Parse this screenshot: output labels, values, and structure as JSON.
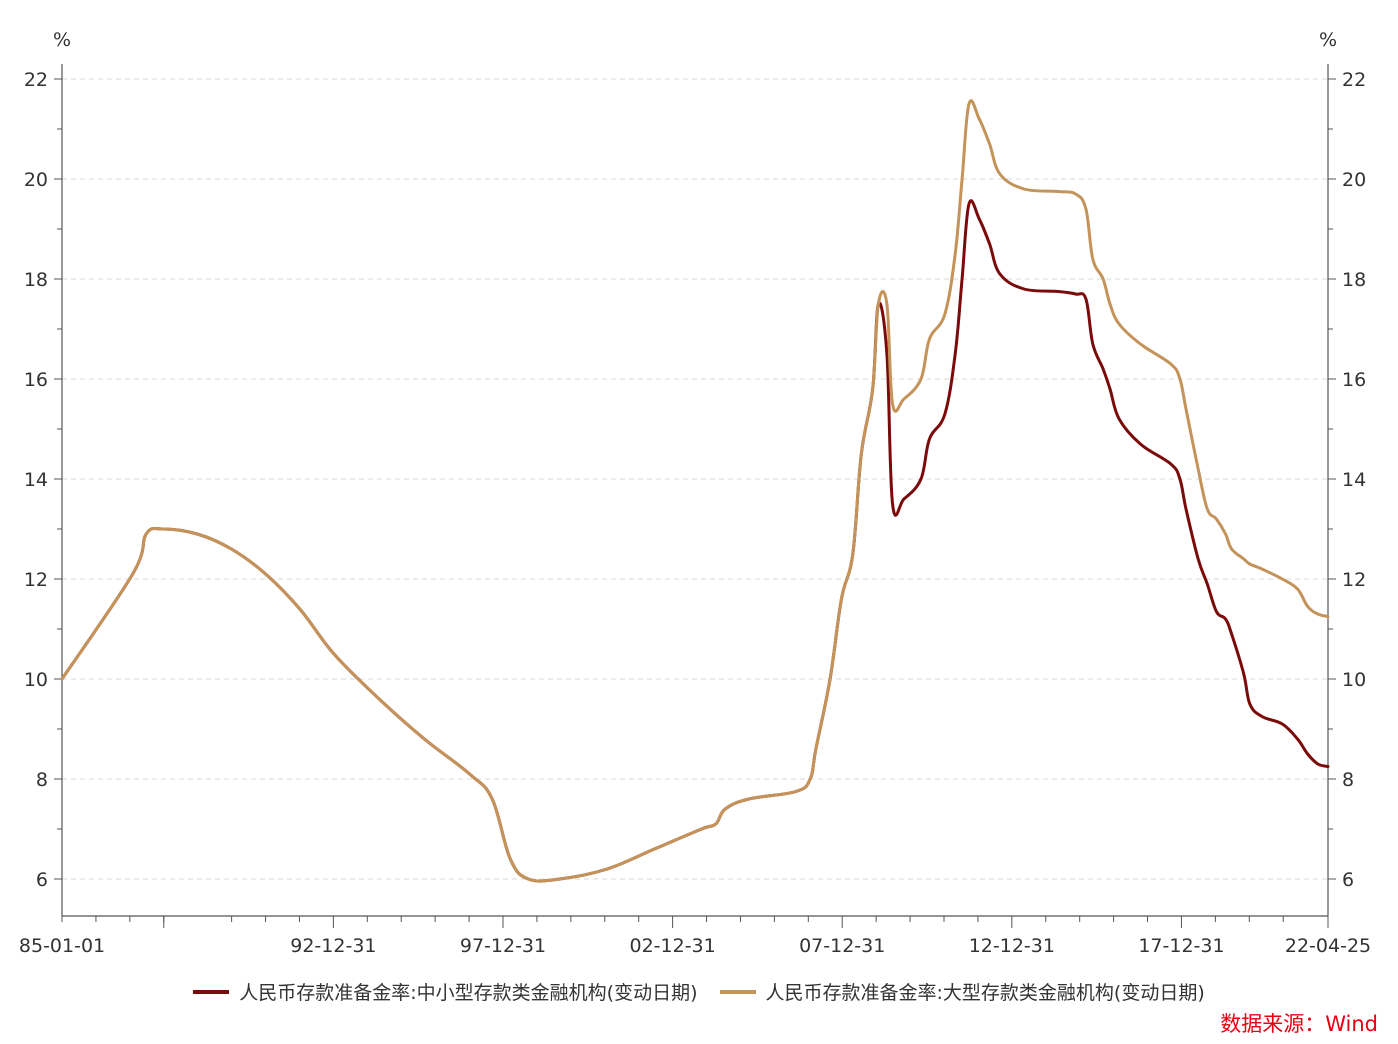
{
  "chart_data": {
    "type": "line",
    "title": "",
    "y_unit_left": "%",
    "y_unit_right": "%",
    "ylim": [
      5.3,
      22.3
    ],
    "yticks": [
      6,
      8,
      10,
      12,
      14,
      16,
      18,
      20,
      22
    ],
    "x_range": [
      1985.0,
      2022.32
    ],
    "x_tick_labels": [
      {
        "label": "85-01-01",
        "x": 1985.0
      },
      {
        "label": "92-12-31",
        "x": 1993.0
      },
      {
        "label": "97-12-31",
        "x": 1998.0
      },
      {
        "label": "02-12-31",
        "x": 2003.0
      },
      {
        "label": "07-12-31",
        "x": 2008.0
      },
      {
        "label": "12-12-31",
        "x": 2013.0
      },
      {
        "label": "17-12-31",
        "x": 2018.0
      },
      {
        "label": "22-04-25",
        "x": 2022.32
      }
    ],
    "minor_ticks": [
      1985,
      1986,
      1987,
      1988,
      1990,
      1991,
      1992,
      1994,
      1995,
      1996,
      1997,
      1999,
      2000,
      2001,
      2002,
      2004,
      2005,
      2006,
      2007,
      2009,
      2010,
      2011,
      2012,
      2014,
      2015,
      2016,
      2017,
      2019,
      2020,
      2021
    ],
    "major_ticks": [
      1988,
      1993,
      1998,
      2003,
      2008,
      2013,
      2018
    ],
    "grid": true,
    "series": [
      {
        "name": "人民币存款准备金率:中小型存款类金融机构(变动日期)",
        "color": "#7b0a0a",
        "points": [
          [
            1985.0,
            10
          ],
          [
            1987.1,
            12.1
          ],
          [
            1987.5,
            12.9
          ],
          [
            1988.0,
            13.0
          ],
          [
            1989.0,
            12.9
          ],
          [
            1990.0,
            12.6
          ],
          [
            1991.0,
            12.1
          ],
          [
            1992.0,
            11.4
          ],
          [
            1993.0,
            10.5
          ],
          [
            1994.0,
            9.6
          ],
          [
            1995.0,
            8.8
          ],
          [
            1996.0,
            8.1
          ],
          [
            1996.5,
            7.6
          ],
          [
            1996.9,
            6.4
          ],
          [
            1997.3,
            6.0
          ],
          [
            1998.0,
            6.0
          ],
          [
            1999.0,
            6.2
          ],
          [
            2000.0,
            6.6
          ],
          [
            2001.0,
            7.0
          ],
          [
            2001.3,
            7.1
          ],
          [
            2001.5,
            7.4
          ],
          [
            2002.0,
            7.6
          ],
          [
            2003.0,
            7.75
          ],
          [
            2003.5,
            8.0
          ],
          [
            2003.7,
            8.6
          ],
          [
            2004.2,
            10.0
          ],
          [
            2004.6,
            11.6
          ],
          [
            2005.0,
            12.5
          ],
          [
            2005.3,
            14.5
          ],
          [
            2005.7,
            15.8
          ],
          [
            2005.9,
            17.5
          ],
          [
            2006.2,
            16.5
          ],
          [
            2006.4,
            13.5
          ],
          [
            2006.8,
            13.6
          ],
          [
            2007.4,
            14.0
          ],
          [
            2007.7,
            14.8
          ],
          [
            2008.2,
            15.3
          ],
          [
            2008.5,
            16.5
          ],
          [
            2008.7,
            18.0
          ],
          [
            2008.9,
            19.5
          ],
          [
            2009.2,
            19.2
          ],
          [
            2009.5,
            18.7
          ],
          [
            2009.8,
            18.1
          ],
          [
            2010.5,
            17.8
          ],
          [
            2011.5,
            17.75
          ],
          [
            2012.0,
            17.7
          ],
          [
            2012.3,
            17.6
          ],
          [
            2012.5,
            16.7
          ],
          [
            2012.8,
            16.2
          ],
          [
            2013.0,
            15.8
          ],
          [
            2013.3,
            15.2
          ],
          [
            2014.0,
            14.7
          ],
          [
            2015.0,
            14.3
          ],
          [
            2015.3,
            14.0
          ],
          [
            2015.5,
            13.4
          ],
          [
            2015.9,
            12.4
          ],
          [
            2016.2,
            11.9
          ],
          [
            2016.5,
            11.35
          ],
          [
            2016.8,
            11.2
          ],
          [
            2017.0,
            10.9
          ],
          [
            2017.4,
            10.1
          ],
          [
            2017.6,
            9.5
          ],
          [
            2018.0,
            9.25
          ],
          [
            2018.4,
            9.1
          ],
          [
            2018.7,
            8.8
          ],
          [
            2018.9,
            8.5
          ],
          [
            2019.1,
            8.3
          ],
          [
            2019.3,
            8.25
          ]
        ]
      },
      {
        "name": "人民币存款准备金率:大型存款类金融机构(变动日期)",
        "color": "#c4935a",
        "points": [
          [
            1985.0,
            10
          ],
          [
            1987.1,
            12.1
          ],
          [
            1987.5,
            12.9
          ],
          [
            1988.0,
            13.0
          ],
          [
            1989.0,
            12.9
          ],
          [
            1990.0,
            12.6
          ],
          [
            1991.0,
            12.1
          ],
          [
            1992.0,
            11.4
          ],
          [
            1993.0,
            10.5
          ],
          [
            1994.0,
            9.6
          ],
          [
            1995.0,
            8.8
          ],
          [
            1996.0,
            8.1
          ],
          [
            1996.5,
            7.6
          ],
          [
            1996.9,
            6.4
          ],
          [
            1997.3,
            6.0
          ],
          [
            1998.0,
            6.0
          ],
          [
            1999.0,
            6.2
          ],
          [
            2000.0,
            6.6
          ],
          [
            2001.0,
            7.0
          ],
          [
            2001.3,
            7.1
          ],
          [
            2001.5,
            7.4
          ],
          [
            2002.0,
            7.6
          ],
          [
            2003.0,
            7.75
          ],
          [
            2003.5,
            8.0
          ],
          [
            2003.7,
            8.6
          ],
          [
            2004.2,
            10.0
          ],
          [
            2004.6,
            11.6
          ],
          [
            2005.0,
            12.5
          ],
          [
            2005.3,
            14.5
          ],
          [
            2005.7,
            15.8
          ],
          [
            2005.9,
            17.5
          ],
          [
            2006.2,
            17.5
          ],
          [
            2006.4,
            15.5
          ],
          [
            2006.8,
            15.6
          ],
          [
            2007.4,
            16.0
          ],
          [
            2007.7,
            16.8
          ],
          [
            2008.2,
            17.3
          ],
          [
            2008.5,
            18.5
          ],
          [
            2008.7,
            20.0
          ],
          [
            2008.9,
            21.5
          ],
          [
            2009.2,
            21.2
          ],
          [
            2009.5,
            20.7
          ],
          [
            2009.8,
            20.1
          ],
          [
            2010.5,
            19.8
          ],
          [
            2011.5,
            19.75
          ],
          [
            2012.0,
            19.7
          ],
          [
            2012.3,
            19.4
          ],
          [
            2012.5,
            18.4
          ],
          [
            2012.8,
            18.0
          ],
          [
            2013.0,
            17.5
          ],
          [
            2013.3,
            17.1
          ],
          [
            2014.0,
            16.7
          ],
          [
            2015.0,
            16.3
          ],
          [
            2015.3,
            16.0
          ],
          [
            2015.5,
            15.4
          ],
          [
            2015.9,
            14.2
          ],
          [
            2016.2,
            13.4
          ],
          [
            2016.5,
            13.2
          ],
          [
            2016.8,
            12.9
          ],
          [
            2017.0,
            12.6
          ],
          [
            2017.4,
            12.4
          ],
          [
            2017.6,
            12.3
          ],
          [
            2018.0,
            12.2
          ],
          [
            2018.4,
            12.0
          ],
          [
            2018.7,
            11.8
          ],
          [
            2018.9,
            11.45
          ],
          [
            2019.1,
            11.3
          ],
          [
            2019.3,
            11.25
          ]
        ]
      }
    ]
  },
  "legend": {
    "items": [
      {
        "label": "人民币存款准备金率:中小型存款类金融机构(变动日期)",
        "color": "#7b0a0a"
      },
      {
        "label": "人民币存款准备金率:大型存款类金融机构(变动日期)",
        "color": "#c4935a"
      }
    ]
  },
  "source": "数据来源：Wind"
}
